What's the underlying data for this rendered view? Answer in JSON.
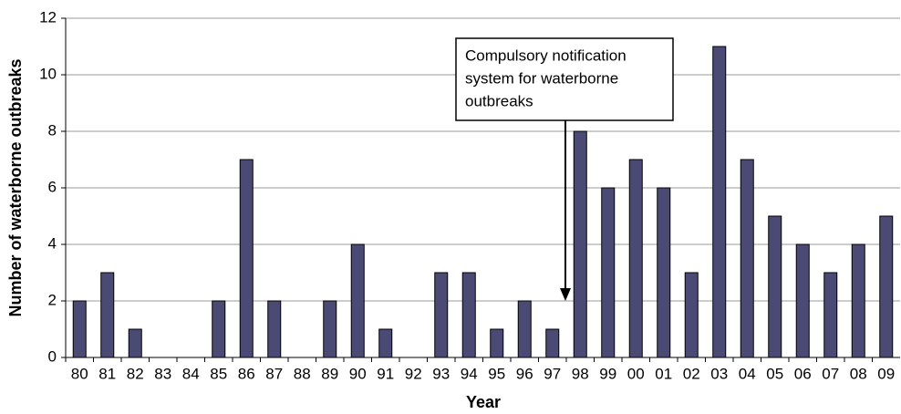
{
  "chart_data": {
    "type": "bar",
    "xlabel": "Year",
    "ylabel": "Number of waterborne outbreaks",
    "annotation": [
      "Compulsory notification",
      "system for waterborne",
      "outbreaks"
    ],
    "categories": [
      "80",
      "81",
      "82",
      "83",
      "84",
      "85",
      "86",
      "87",
      "88",
      "89",
      "90",
      "91",
      "92",
      "93",
      "94",
      "95",
      "96",
      "97",
      "98",
      "99",
      "00",
      "01",
      "02",
      "03",
      "04",
      "05",
      "06",
      "07",
      "08",
      "09"
    ],
    "values": [
      2,
      3,
      1,
      0,
      0,
      2,
      7,
      2,
      0,
      2,
      4,
      1,
      0,
      3,
      3,
      1,
      2,
      1,
      8,
      6,
      7,
      6,
      3,
      11,
      7,
      5,
      4,
      3,
      4,
      5
    ],
    "color": "#4b4a75",
    "ylim": [
      0,
      12
    ],
    "yticks": [
      0,
      2,
      4,
      6,
      8,
      10,
      12
    ],
    "grid": true
  }
}
